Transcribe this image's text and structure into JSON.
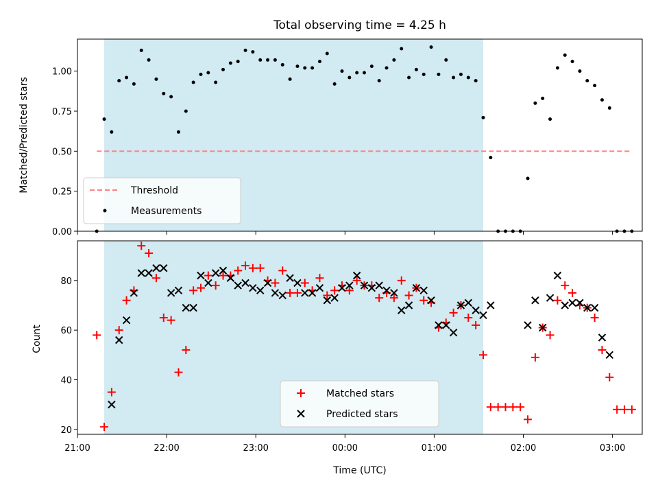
{
  "title": "Total observing time = 4.25 h",
  "chart_data": [
    {
      "type": "scatter",
      "ylabel": "Matched/Predicted stars",
      "ylim": [
        0.0,
        1.2
      ],
      "xlim": [
        "21:00",
        "03:20"
      ],
      "yticks": [
        0.0,
        0.25,
        0.5,
        0.75,
        1.0
      ],
      "yticklabels": [
        "0.00",
        "0.25",
        "0.50",
        "0.75",
        "1.00"
      ],
      "shaded_span": [
        "21:18",
        "01:33"
      ],
      "threshold": {
        "name": "Threshold",
        "value": 0.5,
        "x_range": [
          "21:13",
          "03:13"
        ],
        "color": "#ff7f7f"
      },
      "legend": {
        "placement": "lower-left",
        "entries": [
          "Threshold",
          "Measurements"
        ]
      },
      "series": [
        {
          "name": "Measurements",
          "color": "#000000",
          "marker": "dot",
          "x": [
            "21:13",
            "21:18",
            "21:23",
            "21:28",
            "21:33",
            "21:38",
            "21:43",
            "21:48",
            "21:53",
            "21:58",
            "22:03",
            "22:08",
            "22:13",
            "22:18",
            "22:23",
            "22:28",
            "22:33",
            "22:38",
            "22:43",
            "22:48",
            "22:53",
            "22:58",
            "23:03",
            "23:08",
            "23:13",
            "23:18",
            "23:23",
            "23:28",
            "23:33",
            "23:38",
            "23:43",
            "23:48",
            "23:53",
            "23:58",
            "00:03",
            "00:08",
            "00:13",
            "00:18",
            "00:23",
            "00:28",
            "00:33",
            "00:38",
            "00:43",
            "00:48",
            "00:53",
            "00:58",
            "01:03",
            "01:08",
            "01:13",
            "01:18",
            "01:23",
            "01:28",
            "01:33",
            "01:38",
            "01:43",
            "01:48",
            "01:53",
            "01:58",
            "02:03",
            "02:08",
            "02:13",
            "02:18",
            "02:23",
            "02:28",
            "02:33",
            "02:38",
            "02:43",
            "02:48",
            "02:53",
            "02:58",
            "03:03",
            "03:08",
            "03:13"
          ],
          "y": [
            0.0,
            0.7,
            0.62,
            0.94,
            0.96,
            0.92,
            1.13,
            1.07,
            0.95,
            0.86,
            0.84,
            0.62,
            0.75,
            0.93,
            0.98,
            0.99,
            0.93,
            1.01,
            1.05,
            1.06,
            1.13,
            1.12,
            1.07,
            1.07,
            1.07,
            1.04,
            0.95,
            1.03,
            1.02,
            1.02,
            1.06,
            1.11,
            0.92,
            1.0,
            0.96,
            0.99,
            0.99,
            1.03,
            0.94,
            1.02,
            1.07,
            1.14,
            0.96,
            1.01,
            0.98,
            1.15,
            0.98,
            1.07,
            0.96,
            0.98,
            0.96,
            0.94,
            0.71,
            0.46,
            0.0,
            0.0,
            0.0,
            0.0,
            0.33,
            0.8,
            0.83,
            0.7,
            1.02,
            1.1,
            1.06,
            1.0,
            0.94,
            0.91,
            0.82,
            0.77,
            0.0,
            0.0,
            0.0
          ]
        }
      ]
    },
    {
      "type": "scatter",
      "ylabel": "Count",
      "xlabel": "Time (UTC)",
      "ylim": [
        18,
        96
      ],
      "xlim": [
        "21:00",
        "03:20"
      ],
      "yticks": [
        20,
        40,
        60,
        80
      ],
      "yticklabels": [
        "20",
        "40",
        "60",
        "80"
      ],
      "xticks": [
        "21:00",
        "22:00",
        "23:00",
        "00:00",
        "01:00",
        "02:00",
        "03:00"
      ],
      "shaded_span": [
        "21:18",
        "01:33"
      ],
      "legend": {
        "placement": "lower-center",
        "entries": [
          "Matched stars",
          "Predicted stars"
        ]
      },
      "series": [
        {
          "name": "Matched stars",
          "color": "#ff0000",
          "marker": "plus",
          "x": [
            "21:13",
            "21:18",
            "21:23",
            "21:28",
            "21:33",
            "21:38",
            "21:43",
            "21:48",
            "21:53",
            "21:58",
            "22:03",
            "22:08",
            "22:13",
            "22:18",
            "22:23",
            "22:28",
            "22:33",
            "22:38",
            "22:43",
            "22:48",
            "22:53",
            "22:58",
            "23:03",
            "23:08",
            "23:13",
            "23:18",
            "23:23",
            "23:28",
            "23:33",
            "23:38",
            "23:43",
            "23:48",
            "23:53",
            "23:58",
            "00:03",
            "00:08",
            "00:13",
            "00:18",
            "00:23",
            "00:28",
            "00:33",
            "00:38",
            "00:43",
            "00:48",
            "00:53",
            "00:58",
            "01:03",
            "01:08",
            "01:13",
            "01:18",
            "01:23",
            "01:28",
            "01:33",
            "01:38",
            "01:43",
            "01:48",
            "01:53",
            "01:58",
            "02:03",
            "02:08",
            "02:13",
            "02:18",
            "02:23",
            "02:28",
            "02:33",
            "02:38",
            "02:43",
            "02:48",
            "02:53",
            "02:58",
            "03:03",
            "03:08",
            "03:13"
          ],
          "y": [
            58,
            21,
            35,
            60,
            72,
            76,
            94,
            91,
            81,
            65,
            64,
            43,
            52,
            76,
            77,
            82,
            78,
            82,
            82,
            84,
            86,
            85,
            85,
            80,
            79,
            84,
            75,
            75,
            79,
            76,
            81,
            74,
            76,
            78,
            76,
            80,
            78,
            78,
            73,
            75,
            73,
            80,
            74,
            77,
            72,
            71,
            61,
            63,
            67,
            70,
            65,
            62,
            50,
            29,
            29,
            29,
            29,
            29,
            24,
            49,
            61,
            58,
            72,
            78,
            75,
            70,
            69,
            65,
            52,
            41,
            28,
            28,
            28
          ]
        },
        {
          "name": "Predicted stars",
          "color": "#000000",
          "marker": "x",
          "x": [
            "21:23",
            "21:28",
            "21:33",
            "21:38",
            "21:43",
            "21:48",
            "21:53",
            "21:58",
            "22:03",
            "22:08",
            "22:13",
            "22:18",
            "22:23",
            "22:28",
            "22:33",
            "22:38",
            "22:43",
            "22:48",
            "22:53",
            "22:58",
            "23:03",
            "23:08",
            "23:13",
            "23:18",
            "23:23",
            "23:28",
            "23:33",
            "23:38",
            "23:43",
            "23:48",
            "23:53",
            "23:58",
            "00:03",
            "00:08",
            "00:13",
            "00:18",
            "00:23",
            "00:28",
            "00:33",
            "00:38",
            "00:43",
            "00:48",
            "00:53",
            "00:58",
            "01:03",
            "01:08",
            "01:13",
            "01:18",
            "01:23",
            "01:28",
            "01:33",
            "01:38",
            "02:03",
            "02:08",
            "02:13",
            "02:18",
            "02:23",
            "02:28",
            "02:33",
            "02:38",
            "02:43",
            "02:48",
            "02:53",
            "02:58"
          ],
          "y": [
            30,
            56,
            64,
            75,
            83,
            83,
            85,
            85,
            75,
            76,
            69,
            69,
            82,
            79,
            83,
            84,
            81,
            78,
            79,
            77,
            76,
            79,
            75,
            74,
            81,
            79,
            75,
            75,
            77,
            72,
            73,
            77,
            78,
            82,
            78,
            77,
            78,
            76,
            75,
            68,
            70,
            77,
            76,
            72,
            62,
            62,
            59,
            70,
            71,
            68,
            66,
            70,
            62,
            72,
            61,
            73,
            82,
            70,
            71,
            71,
            69,
            69,
            57,
            50
          ]
        }
      ]
    }
  ]
}
